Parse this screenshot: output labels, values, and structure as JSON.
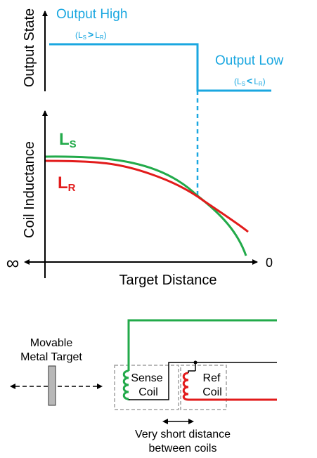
{
  "colors": {
    "output": "#1aa7e0",
    "ls": "#22aa4a",
    "lr": "#e21b1b",
    "axis": "#000000",
    "box": "#a0a0a0",
    "target": "#b8b8b8"
  },
  "top_plot": {
    "ylabel": "Output State",
    "high_label": "Output High",
    "high_cond_l": "(L",
    "high_cond_s": "S",
    "high_cond_op": ">",
    "high_cond_l2": "L",
    "high_cond_r": "R",
    "high_cond_end": ")",
    "low_label": "Output Low",
    "low_cond_l": "(L",
    "low_cond_s": "S",
    "low_cond_op": "<",
    "low_cond_l2": "L",
    "low_cond_r": "R",
    "low_cond_end": ")"
  },
  "bottom_plot": {
    "ylabel": "Coil Inductance",
    "xlabel": "Target Distance",
    "x_left": "∞",
    "x_right": "0",
    "ls_main": "L",
    "ls_sub": "S",
    "lr_main": "L",
    "lr_sub": "R"
  },
  "schematic": {
    "target_label_line1": "Movable",
    "target_label_line2": "Metal Target",
    "sense_line1": "Sense",
    "sense_line2": "Coil",
    "ref_line1": "Ref",
    "ref_line2": "Coil",
    "distance_line1": "Very short distance",
    "distance_line2": "between coils"
  }
}
